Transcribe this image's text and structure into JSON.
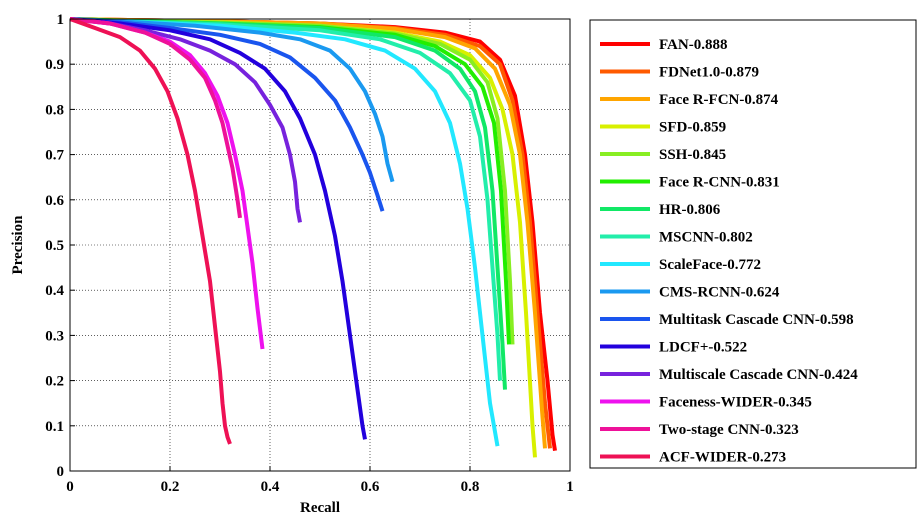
{
  "chart_data": {
    "type": "line",
    "title": "",
    "xlabel": "Recall",
    "ylabel": "Precision",
    "xlim": [
      0,
      1
    ],
    "ylim": [
      0,
      1
    ],
    "xticks": [
      "0",
      "0.2",
      "0.4",
      "0.6",
      "0.8",
      "1"
    ],
    "yticks": [
      "0",
      "0.1",
      "0.2",
      "0.3",
      "0.4",
      "0.5",
      "0.6",
      "0.7",
      "0.8",
      "0.9",
      "1"
    ],
    "grid": true,
    "legend_position": "right, outside",
    "series": [
      {
        "name": "FAN-0.888",
        "color": "#ff0000",
        "x": [
          0,
          0.1,
          0.3,
          0.5,
          0.65,
          0.75,
          0.82,
          0.86,
          0.89,
          0.91,
          0.925,
          0.94,
          0.955,
          0.965,
          0.97
        ],
        "y": [
          1,
          0.998,
          0.995,
          0.99,
          0.982,
          0.97,
          0.95,
          0.91,
          0.83,
          0.7,
          0.55,
          0.35,
          0.2,
          0.08,
          0.045
        ]
      },
      {
        "name": "FDNet1.0-0.879",
        "color": "#ff5a00",
        "x": [
          0,
          0.1,
          0.3,
          0.5,
          0.65,
          0.75,
          0.82,
          0.86,
          0.885,
          0.905,
          0.92,
          0.935,
          0.95,
          0.96
        ],
        "y": [
          1,
          0.998,
          0.995,
          0.99,
          0.98,
          0.965,
          0.94,
          0.9,
          0.82,
          0.7,
          0.55,
          0.35,
          0.15,
          0.05
        ]
      },
      {
        "name": "Face R-FCN-0.874",
        "color": "#ffa500",
        "x": [
          0,
          0.1,
          0.3,
          0.5,
          0.65,
          0.75,
          0.81,
          0.85,
          0.88,
          0.9,
          0.915,
          0.93,
          0.945,
          0.95
        ],
        "y": [
          1,
          0.998,
          0.995,
          0.99,
          0.978,
          0.96,
          0.935,
          0.89,
          0.81,
          0.7,
          0.55,
          0.35,
          0.12,
          0.05
        ]
      },
      {
        "name": "SFD-0.859",
        "color": "#d8f000",
        "x": [
          0,
          0.1,
          0.3,
          0.5,
          0.65,
          0.74,
          0.8,
          0.84,
          0.865,
          0.885,
          0.9,
          0.912,
          0.925,
          0.93
        ],
        "y": [
          1,
          0.997,
          0.993,
          0.985,
          0.97,
          0.95,
          0.92,
          0.87,
          0.8,
          0.7,
          0.55,
          0.35,
          0.1,
          0.03
        ]
      },
      {
        "name": "SSH-0.845",
        "color": "#88ee22",
        "x": [
          0,
          0.1,
          0.3,
          0.5,
          0.65,
          0.74,
          0.8,
          0.835,
          0.855,
          0.87,
          0.88,
          0.885
        ],
        "y": [
          1,
          0.997,
          0.992,
          0.985,
          0.968,
          0.945,
          0.91,
          0.86,
          0.78,
          0.62,
          0.42,
          0.28
        ]
      },
      {
        "name": "Face R-CNN-0.831",
        "color": "#22ee00",
        "x": [
          0,
          0.1,
          0.3,
          0.5,
          0.65,
          0.73,
          0.79,
          0.825,
          0.848,
          0.862,
          0.872,
          0.878
        ],
        "y": [
          1,
          0.996,
          0.99,
          0.982,
          0.965,
          0.94,
          0.9,
          0.85,
          0.77,
          0.62,
          0.42,
          0.28
        ]
      },
      {
        "name": "HR-0.806",
        "color": "#11e866",
        "x": [
          0,
          0.1,
          0.3,
          0.5,
          0.65,
          0.73,
          0.78,
          0.81,
          0.83,
          0.845,
          0.855,
          0.865,
          0.87
        ],
        "y": [
          1,
          0.996,
          0.99,
          0.98,
          0.96,
          0.93,
          0.89,
          0.84,
          0.76,
          0.62,
          0.45,
          0.28,
          0.18
        ]
      },
      {
        "name": "MSCNN-0.802",
        "color": "#22eeaa",
        "x": [
          0,
          0.1,
          0.3,
          0.5,
          0.62,
          0.7,
          0.76,
          0.8,
          0.82,
          0.835,
          0.845,
          0.855,
          0.86
        ],
        "y": [
          1,
          0.995,
          0.988,
          0.975,
          0.955,
          0.925,
          0.88,
          0.82,
          0.74,
          0.6,
          0.45,
          0.3,
          0.2
        ]
      },
      {
        "name": "ScaleFace-0.772",
        "color": "#22e8ff",
        "x": [
          0,
          0.1,
          0.3,
          0.45,
          0.55,
          0.63,
          0.69,
          0.73,
          0.76,
          0.78,
          0.795,
          0.81,
          0.825,
          0.84,
          0.855
        ],
        "y": [
          1,
          0.995,
          0.985,
          0.97,
          0.955,
          0.93,
          0.89,
          0.84,
          0.77,
          0.68,
          0.58,
          0.45,
          0.3,
          0.15,
          0.055
        ]
      },
      {
        "name": "CMS-RCNN-0.624",
        "color": "#1a99f0",
        "x": [
          0,
          0.1,
          0.25,
          0.38,
          0.46,
          0.52,
          0.56,
          0.59,
          0.61,
          0.625,
          0.635,
          0.645
        ],
        "y": [
          1,
          0.995,
          0.985,
          0.97,
          0.955,
          0.93,
          0.89,
          0.84,
          0.79,
          0.74,
          0.68,
          0.64
        ]
      },
      {
        "name": "Multitask Cascade CNN-0.598",
        "color": "#1a55ee",
        "x": [
          0,
          0.1,
          0.2,
          0.3,
          0.38,
          0.44,
          0.49,
          0.53,
          0.56,
          0.585,
          0.6,
          0.615,
          0.625
        ],
        "y": [
          1,
          0.993,
          0.98,
          0.965,
          0.945,
          0.915,
          0.87,
          0.82,
          0.76,
          0.7,
          0.66,
          0.61,
          0.575
        ]
      },
      {
        "name": "LDCF+-0.522",
        "color": "#2200dd",
        "x": [
          0,
          0.1,
          0.2,
          0.28,
          0.34,
          0.39,
          0.43,
          0.46,
          0.49,
          0.51,
          0.53,
          0.545,
          0.56,
          0.575,
          0.585,
          0.59
        ],
        "y": [
          1,
          0.99,
          0.975,
          0.955,
          0.925,
          0.89,
          0.84,
          0.78,
          0.7,
          0.62,
          0.52,
          0.42,
          0.3,
          0.18,
          0.1,
          0.07
        ]
      },
      {
        "name": "Multiscale Cascade CNN-0.424",
        "color": "#7722dd",
        "x": [
          0,
          0.08,
          0.15,
          0.22,
          0.28,
          0.33,
          0.37,
          0.4,
          0.425,
          0.44,
          0.45,
          0.455,
          0.46
        ],
        "y": [
          1,
          0.99,
          0.975,
          0.955,
          0.93,
          0.9,
          0.86,
          0.81,
          0.76,
          0.7,
          0.64,
          0.58,
          0.55
        ]
      },
      {
        "name": "Faceness-WIDER-0.345",
        "color": "#ee11ee",
        "x": [
          0,
          0.08,
          0.15,
          0.2,
          0.24,
          0.27,
          0.295,
          0.315,
          0.33,
          0.345,
          0.355,
          0.365,
          0.375,
          0.385
        ],
        "y": [
          1,
          0.99,
          0.97,
          0.95,
          0.92,
          0.88,
          0.83,
          0.77,
          0.7,
          0.62,
          0.54,
          0.46,
          0.36,
          0.27
        ]
      },
      {
        "name": "Two-stage CNN-0.323",
        "color": "#ee1199",
        "x": [
          0,
          0.08,
          0.15,
          0.2,
          0.24,
          0.27,
          0.29,
          0.305,
          0.315,
          0.325,
          0.335,
          0.34
        ],
        "y": [
          1,
          0.99,
          0.97,
          0.945,
          0.91,
          0.87,
          0.82,
          0.77,
          0.72,
          0.67,
          0.6,
          0.56
        ]
      },
      {
        "name": "ACF-WIDER-0.273",
        "color": "#ee1155",
        "x": [
          0,
          0.05,
          0.1,
          0.14,
          0.17,
          0.195,
          0.215,
          0.235,
          0.25,
          0.265,
          0.28,
          0.29,
          0.3,
          0.305,
          0.31,
          0.315,
          0.32
        ],
        "y": [
          1,
          0.98,
          0.96,
          0.93,
          0.89,
          0.84,
          0.78,
          0.7,
          0.62,
          0.52,
          0.42,
          0.32,
          0.22,
          0.15,
          0.1,
          0.075,
          0.06
        ]
      }
    ]
  }
}
